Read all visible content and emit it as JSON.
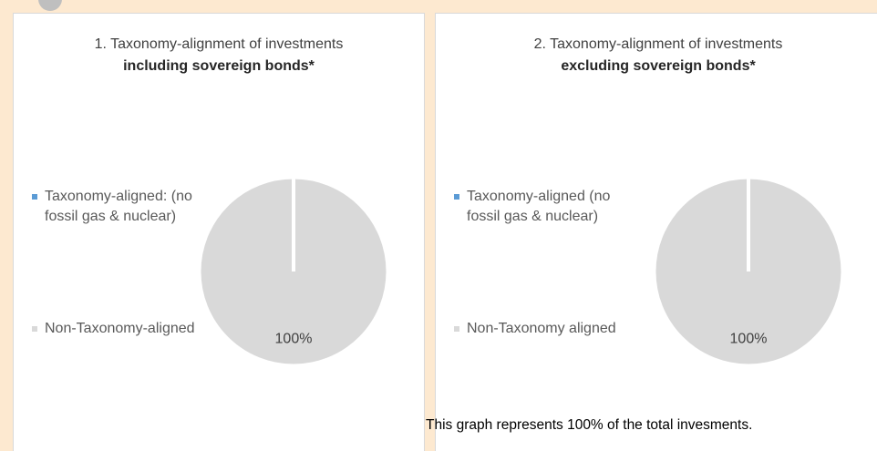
{
  "chart_data": [
    {
      "type": "pie",
      "title": "1. Taxonomy-alignment of investments",
      "subtitle": "including sovereign bonds*",
      "categories": [
        "Taxonomy-aligned: (no fossil gas & nuclear)",
        "Non-Taxonomy-aligned"
      ],
      "values": [
        0,
        100
      ],
      "value_labels": [
        null,
        "100%"
      ],
      "colors": [
        "#5b9bd5",
        "#d9d9d9"
      ],
      "legend": "left"
    },
    {
      "type": "pie",
      "title": "2. Taxonomy-alignment of investments",
      "subtitle": "excluding sovereign bonds*",
      "categories": [
        "Taxonomy-aligned (no fossil gas & nuclear)",
        "Non-Taxonomy aligned"
      ],
      "values": [
        0,
        100
      ],
      "value_labels": [
        null,
        "100%"
      ],
      "colors": [
        "#5b9bd5",
        "#d9d9d9"
      ],
      "legend": "left"
    }
  ],
  "footnote": "This graph represents 100% of the total invesments."
}
